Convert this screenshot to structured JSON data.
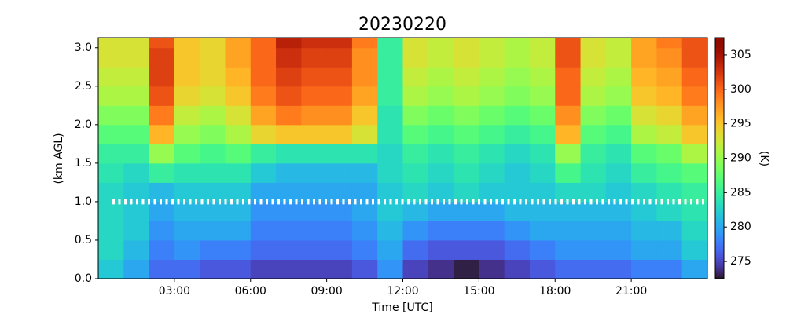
{
  "chart_data": {
    "type": "heatmap",
    "title": "20230220",
    "xlabel": "Time [UTC]",
    "ylabel": "(km AGL)",
    "colorbar_label": "(K)",
    "colormap": "turbo",
    "xlim": [
      0,
      24
    ],
    "ylim": [
      0,
      3.13
    ],
    "clim": [
      272.5,
      307.5
    ],
    "xticks": [
      {
        "value": 3,
        "label": "03:00"
      },
      {
        "value": 6,
        "label": "06:00"
      },
      {
        "value": 9,
        "label": "09:00"
      },
      {
        "value": 12,
        "label": "12:00"
      },
      {
        "value": 15,
        "label": "15:00"
      },
      {
        "value": 18,
        "label": "18:00"
      },
      {
        "value": 21,
        "label": "21:00"
      }
    ],
    "yticks": [
      {
        "value": 0,
        "label": "0.0"
      },
      {
        "value": 0.5,
        "label": "0.5"
      },
      {
        "value": 1,
        "label": "1.0"
      },
      {
        "value": 1.5,
        "label": "1.5"
      },
      {
        "value": 2,
        "label": "2.0"
      },
      {
        "value": 2.5,
        "label": "2.5"
      },
      {
        "value": 3,
        "label": "3.0"
      }
    ],
    "cticks": [
      275,
      280,
      285,
      290,
      295,
      300,
      305
    ],
    "x_edges": [
      0,
      1,
      2,
      3,
      4,
      5,
      6,
      7,
      8,
      9,
      10,
      11,
      12,
      13,
      14,
      15,
      16,
      17,
      18,
      19,
      20,
      21,
      22,
      23,
      24
    ],
    "y_edges": [
      0,
      0.25,
      0.5,
      0.75,
      1,
      1.25,
      1.5,
      1.75,
      2,
      2.25,
      2.5,
      2.75,
      3,
      3.13
    ],
    "z": [
      [
        282,
        280,
        277,
        277,
        276,
        276,
        275,
        275,
        275,
        275,
        276,
        279,
        275,
        274,
        273,
        274,
        275,
        276,
        277,
        277,
        277,
        278,
        278,
        280
      ],
      [
        283,
        281,
        278,
        279,
        278,
        278,
        277,
        277,
        277,
        277,
        278,
        280,
        277,
        276,
        276,
        276,
        277,
        278,
        279,
        279,
        279,
        280,
        280,
        282
      ],
      [
        283,
        282,
        279,
        280,
        280,
        280,
        278,
        278,
        278,
        278,
        279,
        281,
        279,
        278,
        278,
        278,
        279,
        280,
        280,
        280,
        280,
        281,
        281,
        283
      ],
      [
        283,
        282,
        280,
        281,
        281,
        281,
        279,
        279,
        279,
        279,
        280,
        282,
        281,
        280,
        280,
        280,
        281,
        281,
        281,
        281,
        281,
        282,
        283,
        284
      ],
      [
        283,
        282,
        281,
        282,
        282,
        282,
        280,
        280,
        280,
        280,
        280,
        282,
        283,
        282,
        283,
        282,
        282,
        282,
        283,
        283,
        282,
        283,
        284,
        285
      ],
      [
        284,
        283,
        285,
        284,
        284,
        284,
        282,
        281,
        281,
        281,
        281,
        283,
        284,
        283,
        284,
        283,
        282,
        283,
        286,
        284,
        283,
        285,
        286,
        287
      ],
      [
        285,
        285,
        290,
        287,
        286,
        287,
        285,
        284,
        284,
        284,
        284,
        283,
        285,
        284,
        285,
        284,
        283,
        284,
        290,
        285,
        284,
        287,
        288,
        291
      ],
      [
        287,
        287,
        296,
        290,
        289,
        291,
        294,
        295,
        295,
        295,
        293,
        284,
        287,
        286,
        287,
        286,
        285,
        286,
        296,
        287,
        286,
        291,
        292,
        295
      ],
      [
        289,
        289,
        299,
        292,
        291,
        293,
        297,
        299,
        298,
        298,
        295,
        284,
        289,
        288,
        289,
        288,
        287,
        288,
        298,
        289,
        288,
        293,
        294,
        297
      ],
      [
        291,
        291,
        301,
        294,
        293,
        295,
        299,
        301,
        300,
        300,
        297,
        285,
        291,
        290,
        291,
        290,
        289,
        290,
        300,
        291,
        290,
        295,
        296,
        299
      ],
      [
        292,
        292,
        302,
        295,
        294,
        296,
        300,
        302,
        301,
        301,
        298,
        285,
        292,
        291,
        292,
        291,
        290,
        291,
        300,
        292,
        291,
        296,
        297,
        300
      ],
      [
        293,
        293,
        302,
        295,
        294,
        297,
        300,
        303,
        302,
        302,
        298,
        285,
        293,
        292,
        293,
        292,
        291,
        292,
        301,
        293,
        292,
        297,
        298,
        301
      ],
      [
        293,
        293,
        301,
        295,
        294,
        297,
        300,
        304,
        303,
        303,
        299,
        285,
        293,
        292,
        293,
        292,
        291,
        292,
        301,
        293,
        292,
        297,
        299,
        301
      ]
    ],
    "hline": {
      "y": 1,
      "color": "#ffffff"
    }
  }
}
